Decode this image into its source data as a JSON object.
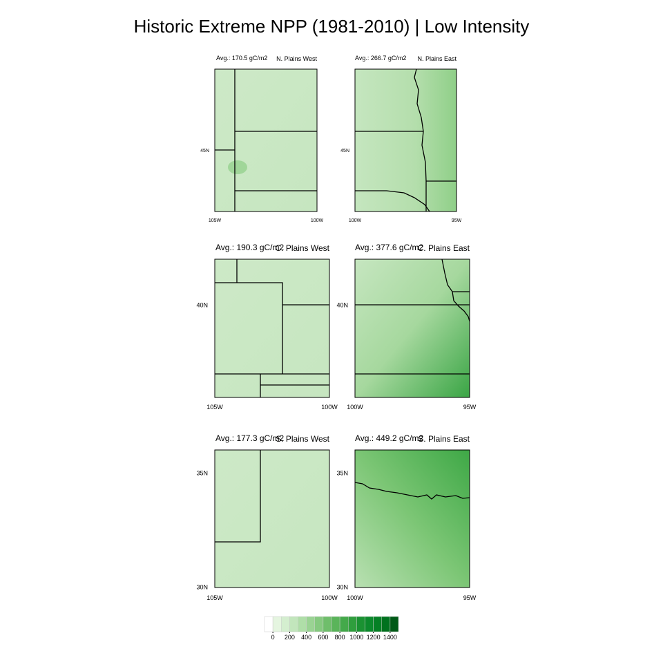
{
  "title": "Historic Extreme NPP (1981-2010) | Low Intensity",
  "panels": [
    {
      "average": "Avg.: 170.5 gC/m2",
      "region": "N. Plains West",
      "lat_labels": [
        "45N"
      ],
      "lon_labels": [
        "105W",
        "100W"
      ]
    },
    {
      "average": "Avg.: 266.7 gC/m2",
      "region": "N. Plains East",
      "lat_labels": [
        "45N"
      ],
      "lon_labels": [
        "100W",
        "95W"
      ]
    },
    {
      "average": "Avg.: 190.3 gC/m2",
      "region": "C. Plains West",
      "lat_labels": [
        "40N"
      ],
      "lon_labels": [
        "105W",
        "100W"
      ]
    },
    {
      "average": "Avg.: 377.6 gC/m2",
      "region": "C. Plains East",
      "lat_labels": [
        "40N"
      ],
      "lon_labels": [
        "100W",
        "95W"
      ]
    },
    {
      "average": "Avg.: 177.3 gC/m2",
      "region": "S. Plains West",
      "lat_labels": [
        "35N",
        "30N"
      ],
      "lon_labels": [
        "105W",
        "100W"
      ]
    },
    {
      "average": "Avg.: 449.2 gC/m2",
      "region": "S. Plains East",
      "lat_labels": [
        "35N",
        "30N"
      ],
      "lon_labels": [
        "100W",
        "95W"
      ]
    }
  ],
  "colorbar": {
    "ticks": [
      0,
      200,
      400,
      600,
      800,
      1000,
      1200,
      1400
    ],
    "colors": [
      "#ffffff",
      "#e5f5e0",
      "#d4eecf",
      "#c2e6bc",
      "#afdea8",
      "#9ad393",
      "#85c97f",
      "#6fbe6b",
      "#5ab45a",
      "#44a94a",
      "#2f9e3d",
      "#1a9232",
      "#0c8a2c",
      "#058025",
      "#00721f",
      "#005a17"
    ]
  }
}
